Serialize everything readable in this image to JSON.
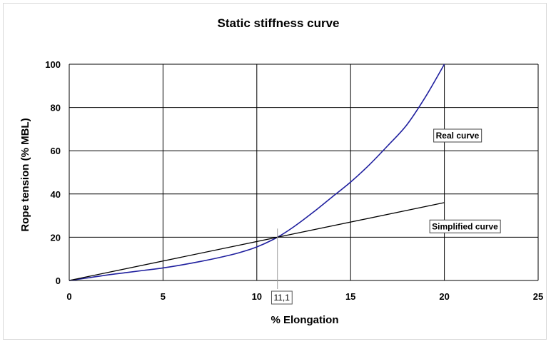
{
  "chart_data": {
    "type": "line",
    "title": "Static stiffness curve",
    "xlabel": "% Elongation",
    "ylabel": "Rope tension (% MBL)",
    "xlim": [
      0,
      25
    ],
    "ylim": [
      0,
      100
    ],
    "xticks": [
      0,
      5,
      10,
      15,
      20,
      25
    ],
    "yticks": [
      0,
      20,
      40,
      60,
      80,
      100
    ],
    "grid": true,
    "legend": "none",
    "series": [
      {
        "name": "Real curve",
        "color": "#1f1f9e",
        "x": [
          0,
          1,
          2,
          3,
          4,
          5,
          6,
          7,
          8,
          9,
          10,
          11.1,
          12,
          13,
          14,
          15,
          16,
          17,
          18,
          19,
          20
        ],
        "y": [
          0,
          1.2,
          2.5,
          3.6,
          4.7,
          5.8,
          7.2,
          8.8,
          10.6,
          12.7,
          15.5,
          20,
          25,
          31.5,
          38.5,
          45.5,
          53.5,
          62.5,
          72,
          85,
          100
        ]
      },
      {
        "name": "Simplified curve",
        "color": "#000000",
        "x": [
          0,
          11.1,
          20
        ],
        "y": [
          0,
          20,
          36
        ]
      }
    ],
    "annotations": [
      {
        "text": "Real curve",
        "x": 20.7,
        "y": 67
      },
      {
        "text": "Simplified curve",
        "x": 21.1,
        "y": 25
      }
    ],
    "marker": {
      "label": "11,1",
      "x": 11.1
    }
  }
}
